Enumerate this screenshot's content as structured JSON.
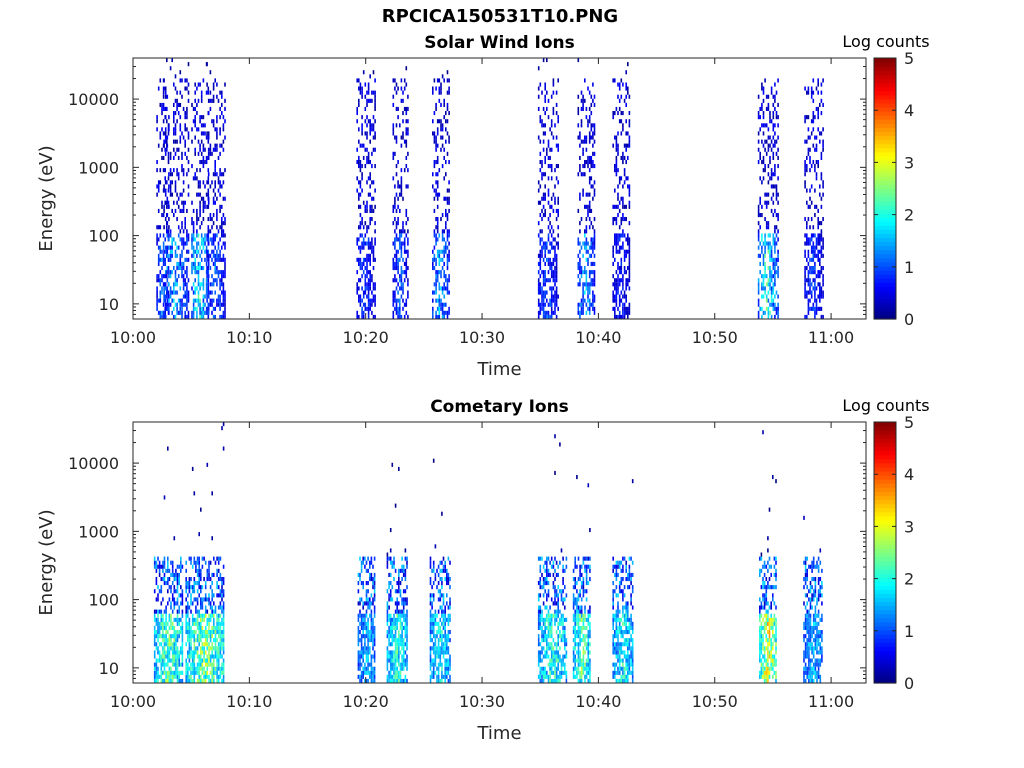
{
  "title": "RPCICA150531T10.PNG",
  "colorbar": {
    "label": "Log counts",
    "min": 0,
    "max": 5,
    "ticks": [
      "0",
      "1",
      "2",
      "3",
      "4",
      "5"
    ],
    "colormap": "jet"
  },
  "chart_data": [
    {
      "type": "heatmap",
      "title": "Solar Wind Ions",
      "xlabel": "Time",
      "ylabel": "Energy (eV)",
      "x_ticks": [
        "10:00",
        "10:10",
        "10:20",
        "10:30",
        "10:40",
        "10:50",
        "11:00"
      ],
      "x_tick_minutes": [
        0,
        10,
        20,
        30,
        40,
        50,
        60
      ],
      "xlim_minutes": [
        0,
        63
      ],
      "y_ticks": [
        "10",
        "100",
        "1000",
        "10000"
      ],
      "y_tick_values": [
        10,
        100,
        1000,
        10000
      ],
      "ylim": [
        6,
        40000
      ],
      "y_scale": "log",
      "color_scale": "Log counts",
      "bursts": [
        {
          "start": 2.0,
          "end": 3.0,
          "low_peak": 1.5
        },
        {
          "start": 2.6,
          "end": 4.8,
          "low_peak": 2.0
        },
        {
          "start": 5.0,
          "end": 6.5,
          "low_peak": 2.5
        },
        {
          "start": 6.3,
          "end": 7.9,
          "low_peak": 1.5
        },
        {
          "start": 19.2,
          "end": 20.8,
          "low_peak": 1.2
        },
        {
          "start": 22.3,
          "end": 23.7,
          "low_peak": 1.4
        },
        {
          "start": 25.7,
          "end": 27.2,
          "low_peak": 2.0
        },
        {
          "start": 34.8,
          "end": 36.5,
          "low_peak": 1.3
        },
        {
          "start": 38.2,
          "end": 39.7,
          "low_peak": 2.0
        },
        {
          "start": 41.2,
          "end": 42.7,
          "low_peak": 1.0
        },
        {
          "start": 53.7,
          "end": 55.5,
          "low_peak": 2.7
        },
        {
          "start": 57.7,
          "end": 59.3,
          "low_peak": 1.2
        }
      ]
    },
    {
      "type": "heatmap",
      "title": "Cometary Ions",
      "xlabel": "Time",
      "ylabel": "Energy (eV)",
      "x_ticks": [
        "10:00",
        "10:10",
        "10:20",
        "10:30",
        "10:40",
        "10:50",
        "11:00"
      ],
      "x_tick_minutes": [
        0,
        10,
        20,
        30,
        40,
        50,
        60
      ],
      "xlim_minutes": [
        0,
        63
      ],
      "y_ticks": [
        "10",
        "100",
        "1000",
        "10000"
      ],
      "y_tick_values": [
        10,
        100,
        1000,
        10000
      ],
      "ylim": [
        6,
        40000
      ],
      "y_scale": "log",
      "color_scale": "Log counts",
      "bursts": [
        {
          "start": 1.8,
          "end": 4.2,
          "low_peak": 3.0
        },
        {
          "start": 4.5,
          "end": 7.8,
          "low_peak": 3.2
        },
        {
          "start": 19.3,
          "end": 20.8,
          "low_peak": 2.0
        },
        {
          "start": 21.8,
          "end": 23.6,
          "low_peak": 2.6
        },
        {
          "start": 25.5,
          "end": 27.2,
          "low_peak": 2.4
        },
        {
          "start": 34.8,
          "end": 37.3,
          "low_peak": 2.7
        },
        {
          "start": 37.8,
          "end": 39.3,
          "low_peak": 3.0
        },
        {
          "start": 41.2,
          "end": 43.0,
          "low_peak": 2.5
        },
        {
          "start": 53.8,
          "end": 55.3,
          "low_peak": 3.8
        },
        {
          "start": 57.6,
          "end": 59.2,
          "low_peak": 2.0
        }
      ]
    }
  ]
}
